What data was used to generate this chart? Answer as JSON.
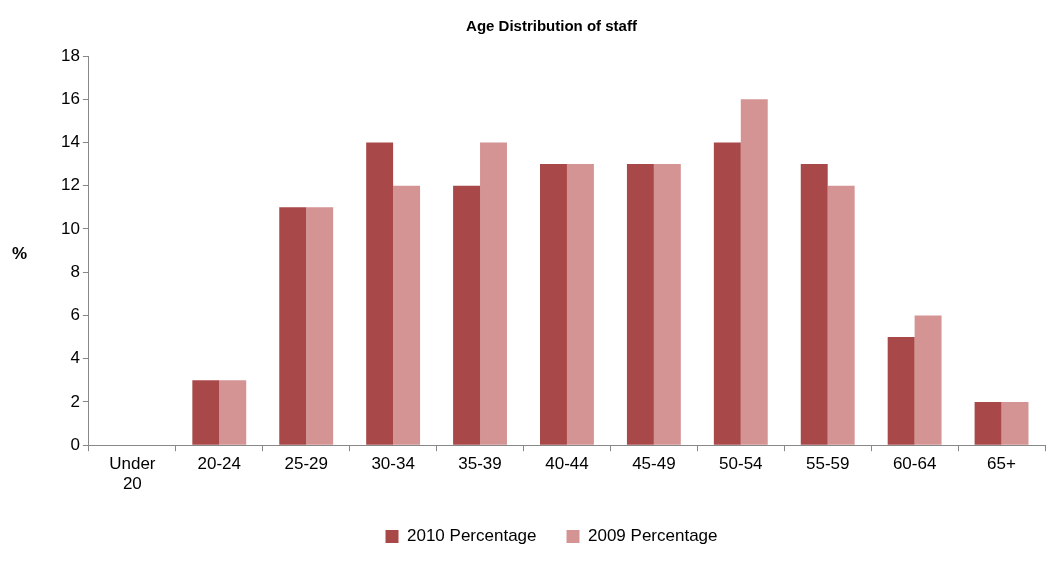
{
  "chart_data": {
    "type": "bar",
    "title": "Age Distribution of staff",
    "ylabel": "%",
    "categories": [
      "Under 20",
      "20-24",
      "25-29",
      "30-34",
      "35-39",
      "40-44",
      "45-49",
      "50-54",
      "55-59",
      "60-64",
      "65+"
    ],
    "series": [
      {
        "name": "2010 Percentage",
        "color": "#a84848",
        "values": [
          0,
          3,
          11,
          14,
          12,
          13,
          13,
          14,
          13,
          5,
          2
        ]
      },
      {
        "name": "2009 Percentage",
        "color": "#d49494",
        "values": [
          0,
          3,
          11,
          12,
          14,
          13,
          13,
          16,
          12,
          6,
          2
        ]
      }
    ],
    "ylim": [
      0,
      18
    ],
    "yticks": [
      0,
      2,
      4,
      6,
      8,
      10,
      12,
      14,
      16,
      18
    ],
    "grid": false,
    "legend": "bottom"
  }
}
